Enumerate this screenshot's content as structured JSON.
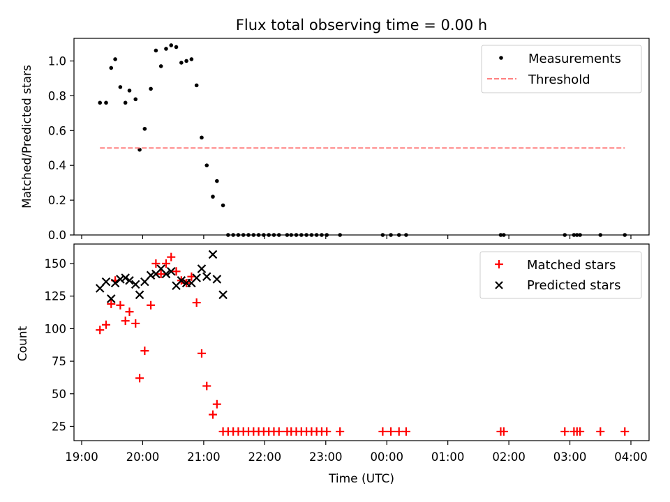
{
  "title": "Flux total observing time = 0.00 h",
  "chart_data": [
    {
      "type": "scatter",
      "panel": "top",
      "ylabel": "Matched/Predicted stars",
      "ylim": [
        0,
        1.13
      ],
      "yticks": [
        0.0,
        0.2,
        0.4,
        0.6,
        0.8,
        1.0
      ],
      "ytick_labels": [
        "0.0",
        "0.2",
        "0.4",
        "0.6",
        "0.8",
        "1.0"
      ],
      "legend_position": "top-right",
      "series": [
        {
          "name": "Measurements",
          "marker": "dot",
          "color": "#000000",
          "points": [
            [
              "19:18",
              0.76
            ],
            [
              "19:24",
              0.76
            ],
            [
              "19:29",
              0.96
            ],
            [
              "19:33",
              1.01
            ],
            [
              "19:38",
              0.85
            ],
            [
              "19:43",
              0.76
            ],
            [
              "19:47",
              0.83
            ],
            [
              "19:53",
              0.78
            ],
            [
              "19:57",
              0.49
            ],
            [
              "20:02",
              0.61
            ],
            [
              "20:08",
              0.84
            ],
            [
              "20:13",
              1.06
            ],
            [
              "20:18",
              0.97
            ],
            [
              "20:23",
              1.07
            ],
            [
              "20:28",
              1.09
            ],
            [
              "20:33",
              1.08
            ],
            [
              "20:38",
              0.99
            ],
            [
              "20:43",
              1.0
            ],
            [
              "20:48",
              1.01
            ],
            [
              "20:53",
              0.86
            ],
            [
              "20:58",
              0.56
            ],
            [
              "21:03",
              0.4
            ],
            [
              "21:09",
              0.22
            ],
            [
              "21:13",
              0.31
            ],
            [
              "21:19",
              0.17
            ],
            [
              "21:24",
              0.0
            ],
            [
              "21:29",
              0.0
            ],
            [
              "21:34",
              0.0
            ],
            [
              "21:39",
              0.0
            ],
            [
              "21:44",
              0.0
            ],
            [
              "21:49",
              0.0
            ],
            [
              "21:54",
              0.0
            ],
            [
              "21:59",
              0.0
            ],
            [
              "22:04",
              0.0
            ],
            [
              "22:09",
              0.0
            ],
            [
              "22:14",
              0.0
            ],
            [
              "22:22",
              0.0
            ],
            [
              "22:26",
              0.0
            ],
            [
              "22:31",
              0.0
            ],
            [
              "22:36",
              0.0
            ],
            [
              "22:41",
              0.0
            ],
            [
              "22:46",
              0.0
            ],
            [
              "22:51",
              0.0
            ],
            [
              "22:56",
              0.0
            ],
            [
              "23:01",
              0.0
            ],
            [
              "23:14",
              0.0
            ],
            [
              "23:56",
              0.0
            ],
            [
              "00:04",
              0.0
            ],
            [
              "00:12",
              0.0
            ],
            [
              "00:19",
              0.0
            ],
            [
              "01:52",
              0.0
            ],
            [
              "01:55",
              0.0
            ],
            [
              "02:55",
              0.0
            ],
            [
              "03:04",
              0.0
            ],
            [
              "03:07",
              0.0
            ],
            [
              "03:10",
              0.0
            ],
            [
              "03:30",
              0.0
            ],
            [
              "03:54",
              0.0
            ]
          ]
        },
        {
          "name": "Threshold",
          "style": "dashed-line",
          "color": "#ff8080",
          "points": [
            [
              "19:18",
              0.5
            ],
            [
              "03:54",
              0.5
            ]
          ]
        }
      ]
    },
    {
      "type": "scatter",
      "panel": "bottom",
      "xlabel": "Time (UTC)",
      "ylabel": "Count",
      "ylim": [
        14,
        165
      ],
      "yticks": [
        25,
        50,
        75,
        100,
        125,
        150
      ],
      "ytick_labels": [
        "25",
        "50",
        "75",
        "100",
        "125",
        "150"
      ],
      "xticks": [
        "19:00",
        "20:00",
        "21:00",
        "22:00",
        "23:00",
        "00:00",
        "01:00",
        "02:00",
        "03:00",
        "04:00"
      ],
      "xtick_labels": [
        "19:00",
        "20:00",
        "21:00",
        "22:00",
        "23:00",
        "00:00",
        "01:00",
        "02:00",
        "03:00",
        "04:00"
      ],
      "legend_position": "top-right",
      "series": [
        {
          "name": "Matched stars",
          "marker": "plus",
          "color": "#ff0000",
          "points": [
            [
              "19:18",
              99
            ],
            [
              "19:24",
              103
            ],
            [
              "19:29",
              119
            ],
            [
              "19:33",
              137
            ],
            [
              "19:38",
              118
            ],
            [
              "19:43",
              106
            ],
            [
              "19:47",
              113
            ],
            [
              "19:53",
              104
            ],
            [
              "19:57",
              62
            ],
            [
              "20:02",
              83
            ],
            [
              "20:08",
              118
            ],
            [
              "20:13",
              150
            ],
            [
              "20:18",
              142
            ],
            [
              "20:23",
              150
            ],
            [
              "20:28",
              155
            ],
            [
              "20:33",
              144
            ],
            [
              "20:38",
              137
            ],
            [
              "20:43",
              135
            ],
            [
              "20:48",
              140
            ],
            [
              "20:53",
              120
            ],
            [
              "20:58",
              81
            ],
            [
              "21:03",
              56
            ],
            [
              "21:09",
              34
            ],
            [
              "21:13",
              42
            ],
            [
              "21:19",
              21
            ],
            [
              "21:24",
              21
            ],
            [
              "21:29",
              21
            ],
            [
              "21:34",
              21
            ],
            [
              "21:39",
              21
            ],
            [
              "21:44",
              21
            ],
            [
              "21:49",
              21
            ],
            [
              "21:54",
              21
            ],
            [
              "21:59",
              21
            ],
            [
              "22:04",
              21
            ],
            [
              "22:09",
              21
            ],
            [
              "22:14",
              21
            ],
            [
              "22:22",
              21
            ],
            [
              "22:26",
              21
            ],
            [
              "22:31",
              21
            ],
            [
              "22:36",
              21
            ],
            [
              "22:41",
              21
            ],
            [
              "22:46",
              21
            ],
            [
              "22:51",
              21
            ],
            [
              "22:56",
              21
            ],
            [
              "23:01",
              21
            ],
            [
              "23:14",
              21
            ],
            [
              "23:56",
              21
            ],
            [
              "00:04",
              21
            ],
            [
              "00:12",
              21
            ],
            [
              "00:19",
              21
            ],
            [
              "01:52",
              21
            ],
            [
              "01:55",
              21
            ],
            [
              "02:55",
              21
            ],
            [
              "03:04",
              21
            ],
            [
              "03:07",
              21
            ],
            [
              "03:10",
              21
            ],
            [
              "03:30",
              21
            ],
            [
              "03:54",
              21
            ]
          ]
        },
        {
          "name": "Predicted stars",
          "marker": "x",
          "color": "#000000",
          "points": [
            [
              "19:18",
              131
            ],
            [
              "19:24",
              136
            ],
            [
              "19:29",
              123
            ],
            [
              "19:33",
              135
            ],
            [
              "19:38",
              138
            ],
            [
              "19:43",
              139
            ],
            [
              "19:47",
              137
            ],
            [
              "19:53",
              134
            ],
            [
              "19:57",
              126
            ],
            [
              "20:02",
              136
            ],
            [
              "20:08",
              141
            ],
            [
              "20:13",
              142
            ],
            [
              "20:18",
              146
            ],
            [
              "20:23",
              142
            ],
            [
              "20:28",
              144
            ],
            [
              "20:33",
              133
            ],
            [
              "20:38",
              137
            ],
            [
              "20:43",
              135
            ],
            [
              "20:48",
              135
            ],
            [
              "20:53",
              139
            ],
            [
              "20:58",
              146
            ],
            [
              "21:03",
              140
            ],
            [
              "21:09",
              157
            ],
            [
              "21:13",
              138
            ],
            [
              "21:19",
              126
            ]
          ]
        }
      ]
    }
  ]
}
